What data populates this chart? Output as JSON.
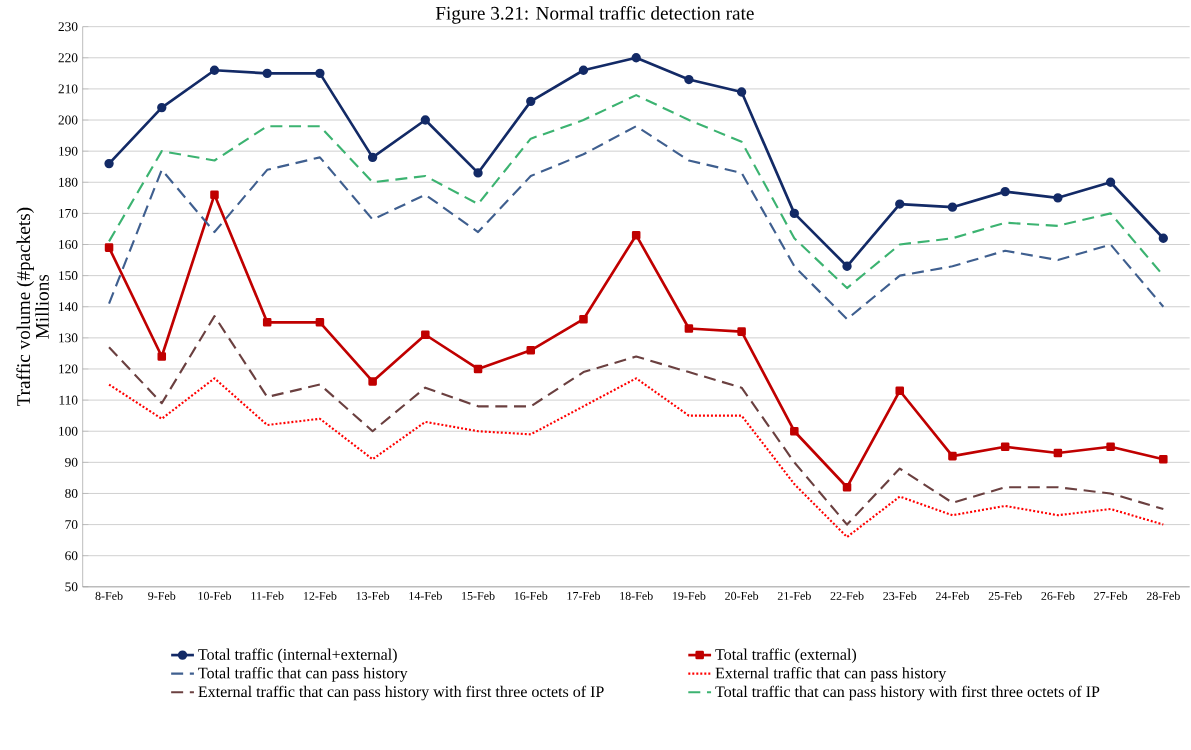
{
  "chart_data": {
    "type": "line",
    "title": "Figure 3.21: Normal traffic detection rate",
    "ylabel": "Traffic volume (#packets)",
    "annotations": [
      "Millions"
    ],
    "categories": [
      "8-Feb",
      "9-Feb",
      "10-Feb",
      "11-Feb",
      "12-Feb",
      "13-Feb",
      "14-Feb",
      "15-Feb",
      "16-Feb",
      "17-Feb",
      "18-Feb",
      "19-Feb",
      "20-Feb",
      "21-Feb",
      "22-Feb",
      "23-Feb",
      "24-Feb",
      "25-Feb",
      "26-Feb",
      "27-Feb",
      "28-Feb"
    ],
    "series": [
      {
        "name": "Total traffic (internal+external)",
        "color": "#132a66",
        "marker": "circle",
        "line_style": "solid",
        "values": [
          186,
          204,
          216,
          215,
          215,
          188,
          200,
          183,
          206,
          216,
          220,
          213,
          209,
          170,
          153,
          173,
          172,
          177,
          175,
          180,
          162
        ]
      },
      {
        "name": "Total traffic (external)",
        "color": "#c00000",
        "marker": "square",
        "line_style": "solid",
        "values": [
          159,
          124,
          176,
          135,
          135,
          116,
          131,
          120,
          126,
          136,
          163,
          133,
          132,
          100,
          82,
          113,
          92,
          95,
          93,
          95,
          91
        ]
      },
      {
        "name": "Total traffic that can pass history",
        "color": "#3f5f8f",
        "marker": "none",
        "line_style": "dashed",
        "values": [
          141,
          184,
          164,
          184,
          188,
          168,
          176,
          164,
          182,
          189,
          198,
          187,
          183,
          153,
          136,
          150,
          153,
          158,
          155,
          160,
          140
        ]
      },
      {
        "name": "External traffic that can pass history",
        "color": "#ff0000",
        "marker": "none",
        "line_style": "dotted",
        "values": [
          115,
          104,
          117,
          102,
          104,
          91,
          103,
          100,
          99,
          108,
          117,
          105,
          105,
          83,
          66,
          79,
          73,
          76,
          73,
          75,
          70
        ]
      },
      {
        "name": "External traffic that can pass history with first three octets of IP",
        "color": "#6b4040",
        "marker": "none",
        "line_style": "dashed",
        "values": [
          127,
          109,
          137,
          111,
          115,
          100,
          114,
          108,
          108,
          119,
          124,
          119,
          114,
          90,
          70,
          88,
          77,
          82,
          82,
          80,
          75
        ]
      },
      {
        "name": "Total traffic that can pass history with first three octets of IP",
        "color": "#3cb371",
        "marker": "none",
        "line_style": "dashed",
        "values": [
          161,
          190,
          187,
          198,
          198,
          180,
          182,
          173,
          194,
          200,
          208,
          200,
          193,
          162,
          146,
          160,
          162,
          167,
          166,
          170,
          150
        ]
      }
    ],
    "ylim": [
      50,
      230
    ],
    "yticks": [
      50,
      60,
      70,
      80,
      90,
      100,
      110,
      120,
      130,
      140,
      150,
      160,
      170,
      180,
      190,
      200,
      210,
      220,
      230
    ],
    "grid": "y",
    "legend": "bottom"
  }
}
